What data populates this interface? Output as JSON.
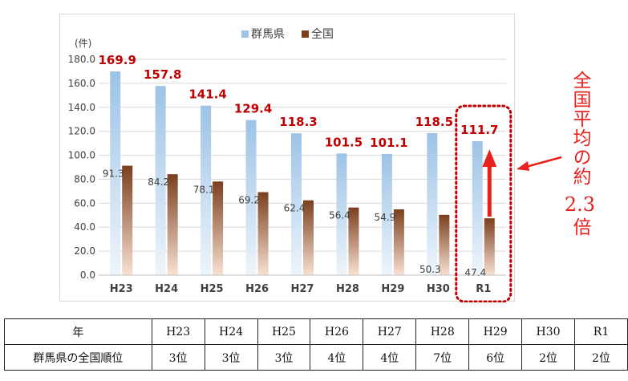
{
  "chart_data": {
    "type": "bar",
    "unit_label": "(件)",
    "categories": [
      "H23",
      "H24",
      "H25",
      "H26",
      "H27",
      "H28",
      "H29",
      "H30",
      "R1"
    ],
    "series": [
      {
        "name": "群馬県",
        "values": [
          169.9,
          157.8,
          141.4,
          129.4,
          118.3,
          101.5,
          101.1,
          118.5,
          111.7
        ],
        "color": "#9dc3e6"
      },
      {
        "name": "全国",
        "values": [
          91.3,
          84.2,
          78.1,
          69.2,
          62.4,
          56.4,
          54.9,
          50.3,
          47.4
        ],
        "color": "#7b3f1e"
      }
    ],
    "y_ticks": [
      "0.0",
      "20.0",
      "40.0",
      "60.0",
      "80.0",
      "100.0",
      "120.0",
      "140.0",
      "160.0",
      "180.0"
    ],
    "ylim": [
      0,
      180
    ],
    "grid": true,
    "legend_position": "top",
    "highlight_category": "R1",
    "accent_color": "#c00000"
  },
  "callout": {
    "text_top": "全国平均の約",
    "number": "2.3",
    "text_bottom": "倍",
    "color": "#e8201e"
  },
  "table": {
    "header": [
      "年",
      "H23",
      "H24",
      "H25",
      "H26",
      "H27",
      "H28",
      "H29",
      "H30",
      "R1"
    ],
    "row": [
      "群馬県の全国順位",
      "3位",
      "3位",
      "3位",
      "4位",
      "4位",
      "7位",
      "6位",
      "2位",
      "2位"
    ]
  }
}
